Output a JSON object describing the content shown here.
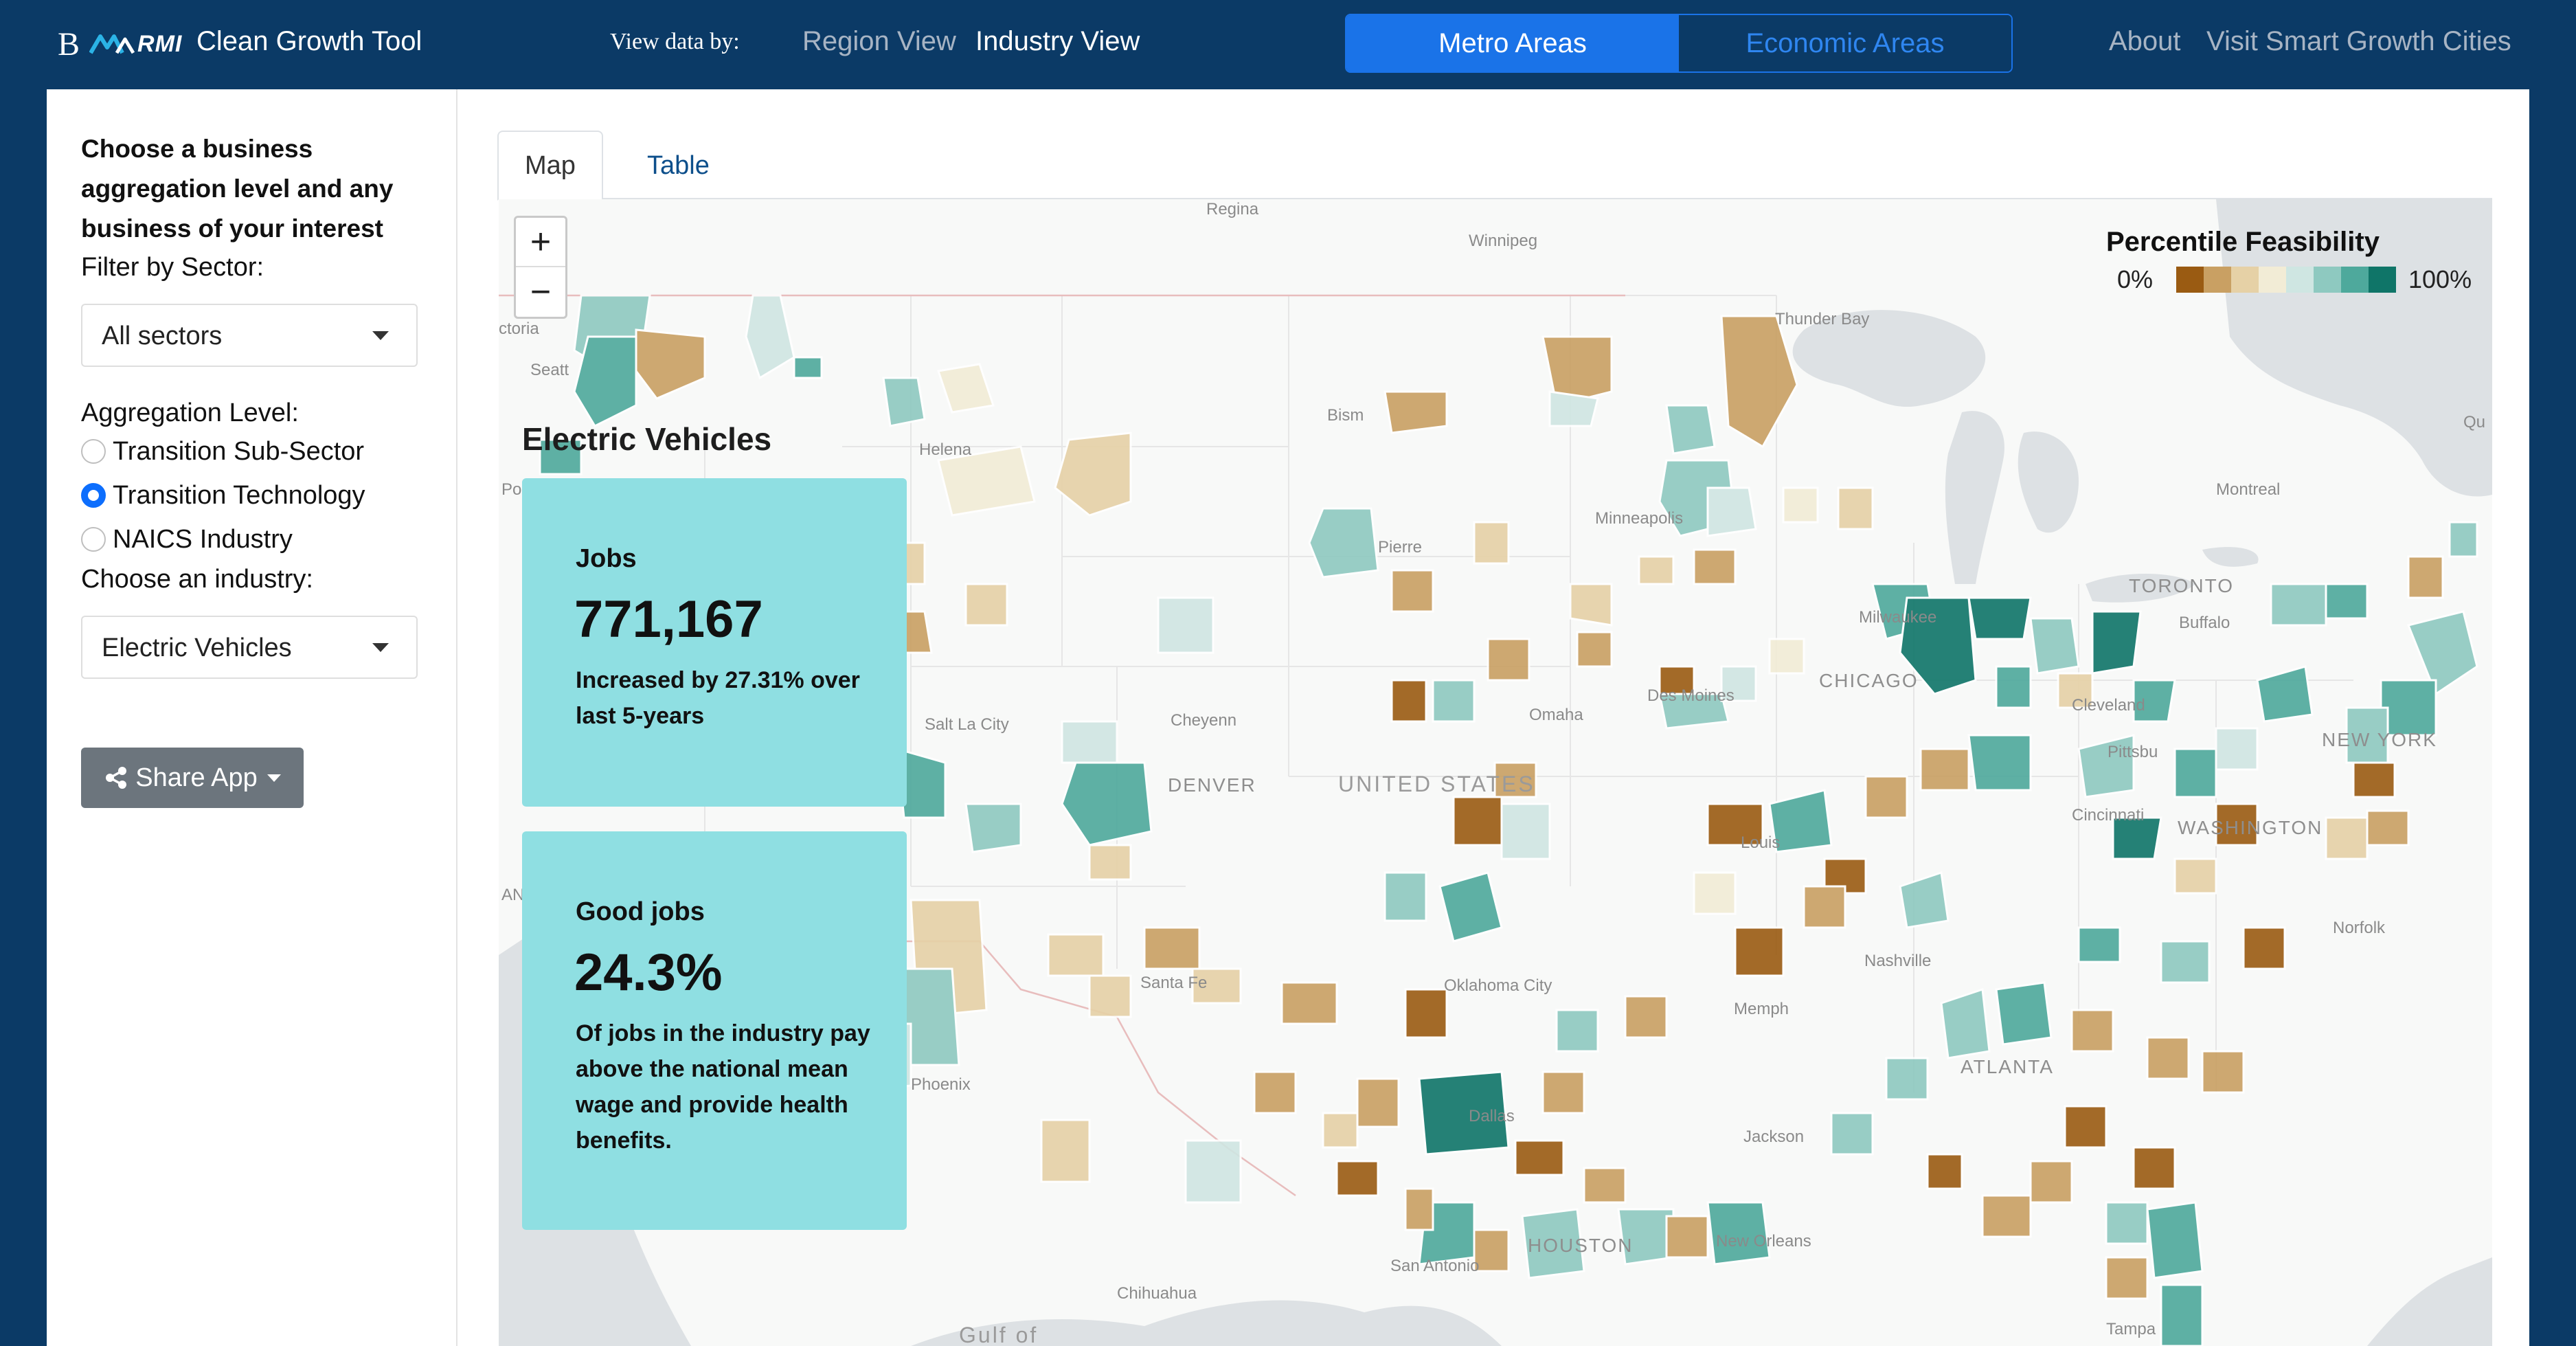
{
  "header": {
    "brand_letter": "B",
    "brand_name": "RMI",
    "app_title": "Clean Growth Tool",
    "view_label": "View data by:",
    "views": [
      "Region View",
      "Industry View"
    ],
    "active_view": "Industry View",
    "segments": [
      "Metro Areas",
      "Economic Areas"
    ],
    "active_segment": "Metro Areas",
    "links": [
      "About",
      "Visit Smart Growth Cities"
    ]
  },
  "sidebar": {
    "heading": "Choose a business aggregation level and any business of your interest",
    "sector_label": "Filter by Sector:",
    "sector_value": "All sectors",
    "aggregation_label": "Aggregation Level:",
    "aggregation_options": [
      "Transition Sub-Sector",
      "Transition Technology",
      "NAICS Industry"
    ],
    "aggregation_selected": "Transition Technology",
    "industry_label": "Choose an industry:",
    "industry_value": "Electric Vehicles",
    "share_label": "Share App"
  },
  "tabs": [
    "Map",
    "Table"
  ],
  "active_tab": "Map",
  "map": {
    "zoom_in": "+",
    "zoom_out": "−",
    "title": "Electric Vehicles",
    "cards": [
      {
        "label": "Jobs",
        "value": "771,167",
        "desc": "Increased by 27.31% over last 5-years"
      },
      {
        "label": "Good jobs",
        "value": "24.3%",
        "desc": "Of jobs in the industry pay above the national mean wage and provide health benefits."
      }
    ],
    "legend": {
      "title": "Percentile Feasibility",
      "min": "0%",
      "max": "100%",
      "colors": [
        "#9a5b12",
        "#c9a063",
        "#e6d1a6",
        "#f2ecd6",
        "#cfe6e2",
        "#8ec9c0",
        "#4ea99c",
        "#0f7568"
      ]
    },
    "labels": {
      "country": "UNITED STATES",
      "cities": [
        "Regina",
        "Winnipeg",
        "Thunder Bay",
        "Qu",
        "Seatt",
        "ctoria",
        "Helena",
        "Bism",
        "Pierre",
        "Minneapolis",
        "Montreal",
        "TORONTO",
        "Buffalo",
        "CHICAGO",
        "Des Moines",
        "Cheyenn",
        "DENVER",
        "Omaha",
        "Salt La City",
        "Pittsbu",
        "NEW YORK",
        "WASHINGTON",
        "Cincinnati",
        "Louis",
        "Nashville",
        "Memph",
        "Oklahoma City",
        "Santa Fe",
        "Phoenix",
        "Dallas",
        "Jackson",
        "ATLANTA",
        "San Antonio",
        "HOUSTON",
        "New Orleans",
        "Chihuahua",
        "Tampa",
        "Milwaukee",
        "Cleveland",
        "Norfolk",
        "Po",
        "AN"
      ],
      "gulf": "Gulf of"
    }
  }
}
